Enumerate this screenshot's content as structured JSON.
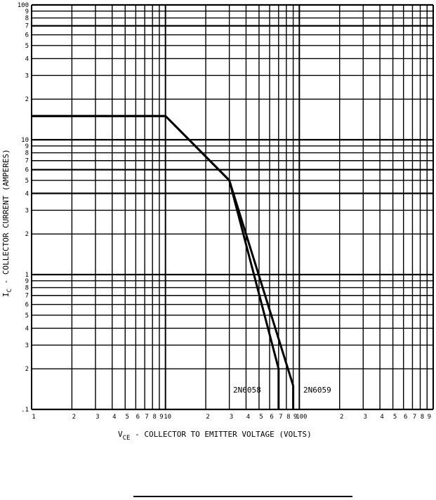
{
  "chart_data": {
    "type": "line",
    "title": "",
    "xlabel_main": "V",
    "xlabel_sub": "CE",
    "xlabel_rest": " - COLLECTOR TO EMITTER VOLTAGE (VOLTS)",
    "ylabel_main": "I",
    "ylabel_sub": "C",
    "ylabel_rest": " - COLLECTOR CURRENT (AMPERES)",
    "x_scale": "log",
    "y_scale": "log",
    "xlim": [
      1,
      1000
    ],
    "ylim": [
      0.1,
      100
    ],
    "grid": true,
    "x_tick_labels": [
      {
        "v": 1,
        "t": "1"
      },
      {
        "v": 2,
        "t": "2"
      },
      {
        "v": 3,
        "t": "3"
      },
      {
        "v": 4,
        "t": "4"
      },
      {
        "v": 5,
        "t": "5"
      },
      {
        "v": 6,
        "t": "6"
      },
      {
        "v": 7,
        "t": "7"
      },
      {
        "v": 8,
        "t": "8"
      },
      {
        "v": 9,
        "t": "9"
      },
      {
        "v": 10,
        "t": "10"
      },
      {
        "v": 20,
        "t": "2"
      },
      {
        "v": 30,
        "t": "3"
      },
      {
        "v": 40,
        "t": "4"
      },
      {
        "v": 50,
        "t": "5"
      },
      {
        "v": 60,
        "t": "6"
      },
      {
        "v": 70,
        "t": "7"
      },
      {
        "v": 80,
        "t": "8"
      },
      {
        "v": 90,
        "t": "9"
      },
      {
        "v": 100,
        "t": "100"
      },
      {
        "v": 200,
        "t": "2"
      },
      {
        "v": 300,
        "t": "3"
      },
      {
        "v": 400,
        "t": "4"
      },
      {
        "v": 500,
        "t": "5"
      },
      {
        "v": 600,
        "t": "6"
      },
      {
        "v": 700,
        "t": "7"
      },
      {
        "v": 800,
        "t": "8"
      },
      {
        "v": 900,
        "t": "9"
      }
    ],
    "y_tick_labels": [
      {
        "v": 100,
        "t": "100"
      },
      {
        "v": 90,
        "t": "9"
      },
      {
        "v": 80,
        "t": "8"
      },
      {
        "v": 70,
        "t": "7"
      },
      {
        "v": 60,
        "t": "6"
      },
      {
        "v": 50,
        "t": "5"
      },
      {
        "v": 40,
        "t": "4"
      },
      {
        "v": 30,
        "t": "3"
      },
      {
        "v": 20,
        "t": "2"
      },
      {
        "v": 10,
        "t": "10"
      },
      {
        "v": 9,
        "t": "9"
      },
      {
        "v": 8,
        "t": "8"
      },
      {
        "v": 7,
        "t": "7"
      },
      {
        "v": 6,
        "t": "6"
      },
      {
        "v": 5,
        "t": "5"
      },
      {
        "v": 4,
        "t": "4"
      },
      {
        "v": 3,
        "t": "3"
      },
      {
        "v": 2,
        "t": "2"
      },
      {
        "v": 1,
        "t": "1"
      },
      {
        "v": 0.9,
        "t": "9"
      },
      {
        "v": 0.8,
        "t": "8"
      },
      {
        "v": 0.7,
        "t": "7"
      },
      {
        "v": 0.6,
        "t": "6"
      },
      {
        "v": 0.5,
        "t": "5"
      },
      {
        "v": 0.4,
        "t": "4"
      },
      {
        "v": 0.3,
        "t": "3"
      },
      {
        "v": 0.2,
        "t": "2"
      },
      {
        "v": 0.1,
        "t": ".1"
      }
    ],
    "bold_y_gridlines": [
      70,
      10,
      6,
      4,
      1
    ],
    "series": [
      {
        "name": "2N6058",
        "x": [
          1,
          10,
          30,
          70,
          70
        ],
        "y": [
          15,
          15,
          5,
          0.2,
          0.1
        ]
      },
      {
        "name": "2N6059",
        "x": [
          1,
          10,
          30,
          90,
          90
        ],
        "y": [
          15,
          15,
          5,
          0.15,
          0.1
        ]
      }
    ]
  }
}
